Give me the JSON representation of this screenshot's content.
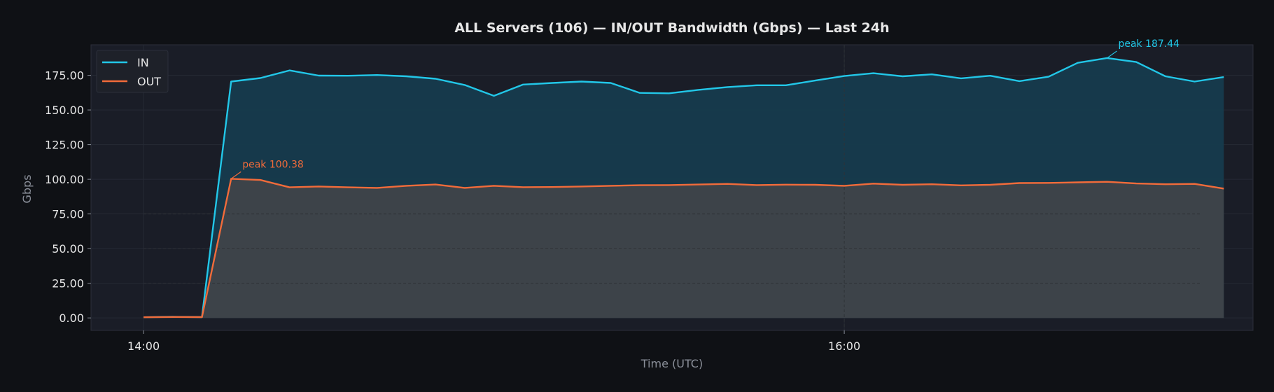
{
  "theme": {
    "background": "#0f1115",
    "plot_background": "#1a1d27",
    "plot_border": "#2c303b",
    "text": "#e6e6e6",
    "muted_text": "#8a8f99",
    "in_color": "#22c7e8",
    "out_color": "#f26b3a",
    "in_fill": "#163b4d",
    "out_fill": "#414449"
  },
  "chart_data": {
    "type": "area",
    "title": "ALL Servers (106) — IN/OUT Bandwidth (Gbps) — Last 24h",
    "xlabel": "Time (UTC)",
    "ylabel": "Gbps",
    "ylim": [
      -9,
      197
    ],
    "xlim": [
      "13:51",
      "17:10"
    ],
    "yticks": [
      0,
      25,
      50,
      75,
      100,
      125,
      150,
      175
    ],
    "ytick_labels": [
      "0.00",
      "25.00",
      "50.00",
      "75.00",
      "100.00",
      "125.00",
      "150.00",
      "175.00"
    ],
    "xticks": [
      "14:00",
      "16:00"
    ],
    "grid": true,
    "legend": "top-left",
    "x": [
      "14:00",
      "14:05",
      "14:10",
      "14:15",
      "14:20",
      "14:25",
      "14:30",
      "14:35",
      "14:40",
      "14:45",
      "14:50",
      "14:55",
      "15:00",
      "15:05",
      "15:10",
      "15:15",
      "15:20",
      "15:25",
      "15:30",
      "15:35",
      "15:40",
      "15:45",
      "15:50",
      "15:55",
      "16:00",
      "16:05",
      "16:10",
      "16:15",
      "16:20",
      "16:25",
      "16:30",
      "16:35",
      "16:40",
      "16:45",
      "16:50",
      "16:55",
      "17:00",
      "17:05"
    ],
    "series": [
      {
        "name": "IN",
        "color": "#22c7e8",
        "values": [
          0.5,
          0.8,
          0.6,
          170.5,
          173,
          178.5,
          174.8,
          174.7,
          175.2,
          174.3,
          172.5,
          168,
          160.2,
          168.3,
          169.5,
          170.5,
          169.5,
          162.3,
          162,
          164.5,
          166.5,
          167.8,
          167.8,
          171.2,
          174.5,
          176.5,
          174.3,
          175.7,
          172.8,
          174.7,
          170.8,
          174,
          184,
          187.44,
          184.6,
          174.3,
          170.5,
          173.7
        ]
      },
      {
        "name": "OUT",
        "color": "#f26b3a",
        "values": [
          0.5,
          0.7,
          0.6,
          100.38,
          99.5,
          94.2,
          94.8,
          94.2,
          93.8,
          95.3,
          96.2,
          93.8,
          95.3,
          94.3,
          94.4,
          94.8,
          95.3,
          95.7,
          95.8,
          96.2,
          96.7,
          95.8,
          96.1,
          96,
          95.3,
          96.9,
          96,
          96.4,
          95.6,
          96,
          97.3,
          97.4,
          97.8,
          98.2,
          97,
          96.4,
          96.7,
          93.3
        ]
      }
    ],
    "annotations": [
      {
        "text": "peak 187.44",
        "x": "16:45",
        "y": 187.44,
        "series": "IN"
      },
      {
        "text": "peak 100.38",
        "x": "14:15",
        "y": 100.38,
        "series": "OUT"
      }
    ]
  }
}
